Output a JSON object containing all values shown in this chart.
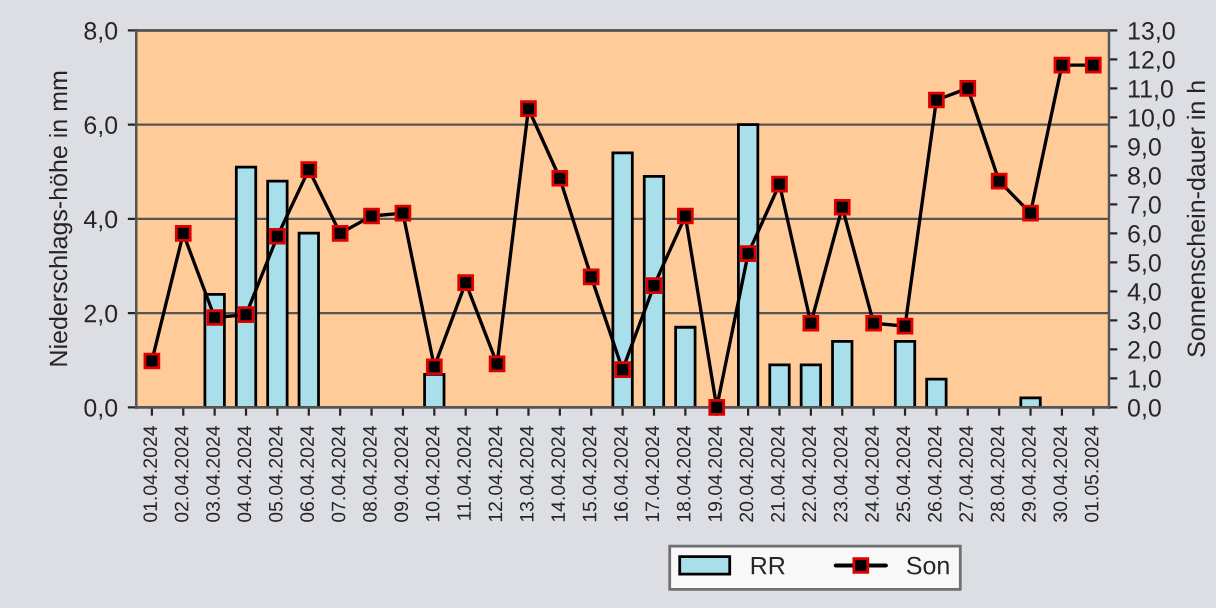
{
  "chart_data": {
    "type": "bar",
    "ylabel": "Niederschlags-höhe in mm",
    "y2label": "Sonnenschein-dauer in h",
    "categories": [
      "01.04.2024",
      "02.04.2024",
      "03.04.2024",
      "04.04.2024",
      "05.04.2024",
      "06.04.2024",
      "07.04.2024",
      "08.04.2024",
      "09.04.2024",
      "10.04.2024",
      "11.04.2024",
      "12.04.2024",
      "13.04.2024",
      "14.04.2024",
      "15.04.2024",
      "16.04.2024",
      "17.04.2024",
      "18.04.2024",
      "19.04.2024",
      "20.04.2024",
      "21.04.2024",
      "22.04.2024",
      "23.04.2024",
      "24.04.2024",
      "25.04.2024",
      "26.04.2024",
      "27.04.2024",
      "28.04.2024",
      "29.04.2024",
      "30.04.2024",
      "01.05.2024"
    ],
    "series": [
      {
        "name": "RR",
        "color": "#a9dfea",
        "values": [
          null,
          null,
          2.4,
          5.1,
          4.8,
          3.7,
          null,
          null,
          null,
          0.7,
          null,
          null,
          null,
          null,
          null,
          5.4,
          4.9,
          1.7,
          null,
          6.0,
          0.9,
          0.9,
          1.4,
          null,
          1.4,
          0.6,
          null,
          null,
          0.2,
          null,
          null
        ]
      },
      {
        "name": "Son",
        "type": "line",
        "axis": "y2",
        "color": "#000000",
        "marker": "square",
        "values": [
          1.6,
          6.0,
          3.1,
          3.2,
          5.9,
          8.2,
          6.0,
          6.6,
          6.7,
          1.4,
          4.3,
          1.5,
          10.3,
          7.9,
          4.5,
          1.3,
          4.2,
          6.6,
          0.0,
          5.3,
          7.7,
          2.9,
          6.9,
          2.9,
          2.8,
          10.6,
          11.0,
          7.8,
          6.7,
          11.8,
          11.8
        ]
      }
    ],
    "ylim": [
      0,
      8
    ],
    "yticks": [
      {
        "value": 0,
        "label": "0,0"
      },
      {
        "value": 2,
        "label": "2,0"
      },
      {
        "value": 4,
        "label": "4,0"
      },
      {
        "value": 6,
        "label": "6,0"
      },
      {
        "value": 8,
        "label": "8,0"
      }
    ],
    "y2lim": [
      0,
      13
    ],
    "y2ticks": [
      {
        "value": 0,
        "label": "0,0"
      },
      {
        "value": 1,
        "label": "1,0"
      },
      {
        "value": 2,
        "label": "2,0"
      },
      {
        "value": 3,
        "label": "3,0"
      },
      {
        "value": 4,
        "label": "4,0"
      },
      {
        "value": 5,
        "label": "5,0"
      },
      {
        "value": 6,
        "label": "6,0"
      },
      {
        "value": 7,
        "label": "7,0"
      },
      {
        "value": 8,
        "label": "8,0"
      },
      {
        "value": 9,
        "label": "9,0"
      },
      {
        "value": 10,
        "label": "10,0"
      },
      {
        "value": 11,
        "label": "11,0"
      },
      {
        "value": 12,
        "label": "12,0"
      },
      {
        "value": 13,
        "label": "13,0"
      }
    ],
    "grid": "y",
    "legend": "bottom right"
  }
}
